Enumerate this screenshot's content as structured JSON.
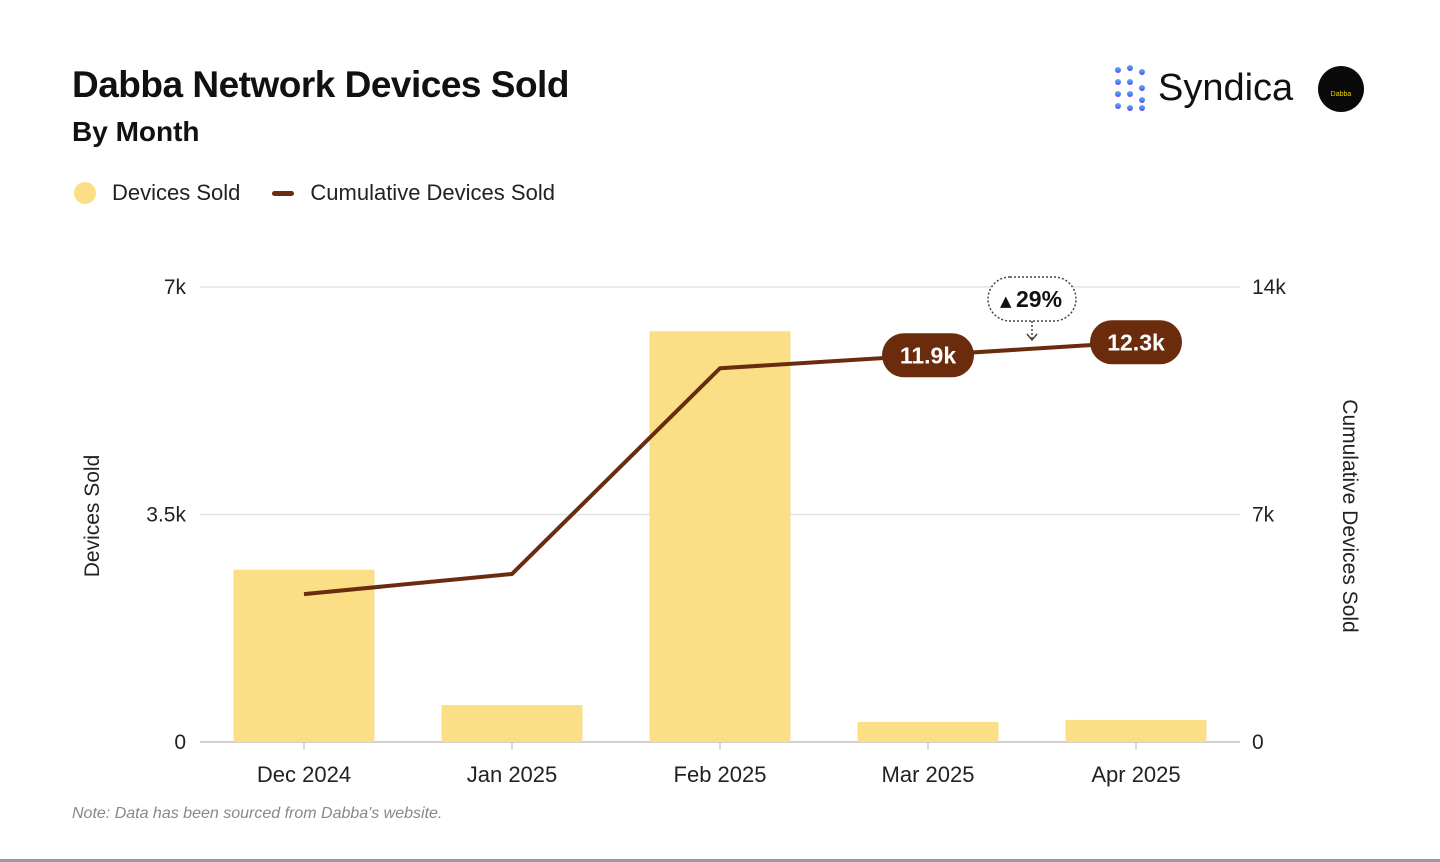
{
  "header": {
    "title": "Dabba Network Devices Sold",
    "subtitle": "By Month"
  },
  "branding": {
    "logo_text": "Syndica",
    "badge_text": "Dabba"
  },
  "note": "Note: Data has been sourced from Dabba's website.",
  "colors": {
    "bar": "#FADF87",
    "line": "#6A2C0C",
    "grid": "#e4e4e4"
  },
  "chart_data": {
    "type": "bar+line",
    "categories": [
      "Dec 2024",
      "Jan 2025",
      "Feb 2025",
      "Mar 2025",
      "Apr 2025"
    ],
    "series": [
      {
        "name": "Devices Sold",
        "type": "bar",
        "axis": "left",
        "values": [
          2650,
          570,
          6320,
          310,
          340
        ]
      },
      {
        "name": "Cumulative Devices Sold",
        "type": "line",
        "axis": "right",
        "values": [
          4550,
          5170,
          11500,
          11900,
          12300
        ]
      }
    ],
    "ylabel": "Devices Sold",
    "y2label": "Cumulative Devices Sold",
    "ylim": [
      0,
      7000
    ],
    "y2lim": [
      0,
      14000
    ],
    "yticks": [
      "0",
      "3.5k",
      "7k"
    ],
    "y2ticks": [
      "0",
      "7k",
      "14k"
    ],
    "grid": true,
    "legend": "top-left",
    "data_labels": [
      {
        "category": "Mar 2025",
        "text": "11.9k"
      },
      {
        "category": "Apr 2025",
        "text": "12.3k"
      }
    ],
    "annotation": {
      "text": "29%",
      "direction": "up"
    }
  }
}
